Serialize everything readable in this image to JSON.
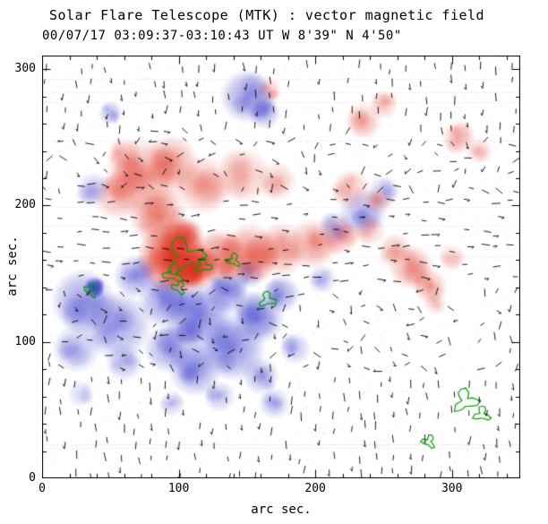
{
  "chart_data": {
    "type": "heatmap",
    "title": "Solar Flare Telescope (MTK) : vector magnetic field",
    "subtitle": "00/07/17  03:09:37-03:10:43 UT    W 8'39\"  N 4'50\"",
    "xlabel": "arc sec.",
    "ylabel": "arc sec.",
    "xlim": [
      0,
      350
    ],
    "ylim": [
      0,
      310
    ],
    "x_ticks": [
      0,
      100,
      200,
      300
    ],
    "y_ticks": [
      0,
      100,
      200,
      300
    ],
    "minor_tick_step": 20,
    "grid": false,
    "legend": "none",
    "colors": {
      "positive": "#dd2414",
      "negative": "#2c2cc8",
      "contour": "#00a000",
      "vector": "#000000",
      "axis": "#000000"
    },
    "positive_regions": [
      [
        75,
        220,
        30,
        0.4
      ],
      [
        55,
        207,
        18,
        0.32
      ],
      [
        95,
        232,
        20,
        0.38
      ],
      [
        118,
        215,
        22,
        0.33
      ],
      [
        148,
        222,
        20,
        0.28
      ],
      [
        172,
        218,
        15,
        0.22
      ],
      [
        60,
        237,
        13,
        0.28
      ],
      [
        85,
        192,
        22,
        0.45
      ],
      [
        95,
        162,
        26,
        0.85
      ],
      [
        102,
        173,
        18,
        0.65
      ],
      [
        113,
        155,
        17,
        0.75
      ],
      [
        130,
        163,
        20,
        0.55
      ],
      [
        152,
        165,
        22,
        0.48
      ],
      [
        175,
        168,
        20,
        0.4
      ],
      [
        198,
        172,
        19,
        0.34
      ],
      [
        218,
        178,
        15,
        0.28
      ],
      [
        240,
        182,
        12,
        0.22
      ],
      [
        270,
        155,
        17,
        0.38
      ],
      [
        284,
        141,
        13,
        0.32
      ],
      [
        258,
        168,
        12,
        0.28
      ],
      [
        235,
        262,
        14,
        0.28
      ],
      [
        250,
        274,
        11,
        0.24
      ],
      [
        305,
        250,
        13,
        0.28
      ],
      [
        320,
        240,
        10,
        0.22
      ],
      [
        166,
        285,
        9,
        0.26
      ],
      [
        226,
        212,
        15,
        0.26
      ],
      [
        246,
        204,
        11,
        0.22
      ],
      [
        300,
        162,
        10,
        0.2
      ],
      [
        288,
        128,
        9,
        0.18
      ]
    ],
    "negative_regions": [
      [
        150,
        280,
        20,
        0.45
      ],
      [
        163,
        268,
        12,
        0.35
      ],
      [
        50,
        268,
        9,
        0.32
      ],
      [
        38,
        212,
        13,
        0.26
      ],
      [
        30,
        130,
        24,
        0.45
      ],
      [
        55,
        112,
        26,
        0.42
      ],
      [
        25,
        95,
        18,
        0.32
      ],
      [
        38,
        140,
        8,
        0.85
      ],
      [
        68,
        148,
        16,
        0.42
      ],
      [
        90,
        130,
        20,
        0.48
      ],
      [
        115,
        118,
        26,
        0.58
      ],
      [
        140,
        95,
        24,
        0.52
      ],
      [
        112,
        80,
        20,
        0.46
      ],
      [
        158,
        118,
        20,
        0.48
      ],
      [
        175,
        135,
        14,
        0.42
      ],
      [
        135,
        137,
        16,
        0.52
      ],
      [
        160,
        75,
        14,
        0.32
      ],
      [
        170,
        55,
        12,
        0.28
      ],
      [
        235,
        195,
        18,
        0.36
      ],
      [
        215,
        183,
        13,
        0.32
      ],
      [
        250,
        210,
        12,
        0.26
      ],
      [
        95,
        55,
        10,
        0.22
      ],
      [
        130,
        60,
        12,
        0.26
      ],
      [
        28,
        62,
        10,
        0.18
      ],
      [
        205,
        146,
        11,
        0.26
      ],
      [
        185,
        95,
        12,
        0.28
      ],
      [
        152,
        150,
        11,
        0.34
      ],
      [
        92,
        95,
        18,
        0.4
      ],
      [
        60,
        85,
        14,
        0.3
      ]
    ],
    "contours": [
      [
        104,
        163,
        14
      ],
      [
        96,
        150,
        7
      ],
      [
        118,
        156,
        6
      ],
      [
        140,
        160,
        5
      ],
      [
        165,
        131,
        6
      ],
      [
        36,
        138,
        5
      ],
      [
        310,
        57,
        9
      ],
      [
        322,
        47,
        6
      ],
      [
        283,
        27,
        5
      ],
      [
        100,
        140,
        5
      ]
    ],
    "vector_field": {
      "grid_step": 11,
      "min_len": 5,
      "max_len": 10,
      "skip_fraction": 0.3,
      "seed": 20000717
    },
    "noise": {
      "speckles": 3200,
      "streaks": 10
    }
  }
}
